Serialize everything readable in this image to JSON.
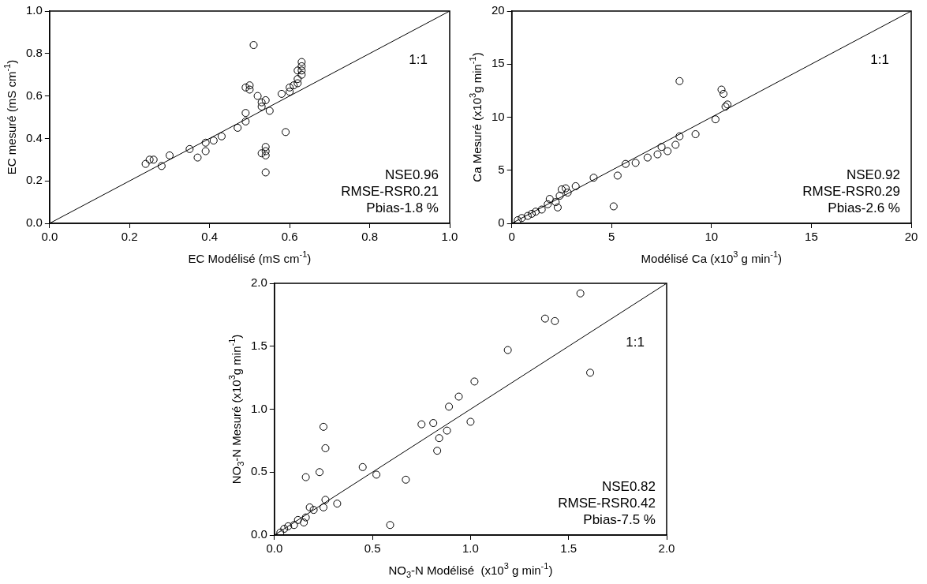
{
  "chart_data": [
    {
      "type": "scatter",
      "xlabel": "EC Modélisé (mS cm$^{-1}$)",
      "ylabel": "EC mesuré (mS cm$^{-1}$)",
      "marker": "circle",
      "xlim": [
        0,
        1
      ],
      "ylim": [
        0,
        1
      ],
      "xticks": [
        {
          "value": 0,
          "label": "0.0"
        },
        {
          "value": 0.2,
          "label": "0.2"
        },
        {
          "value": 0.4,
          "label": "0.4"
        },
        {
          "value": 0.6,
          "label": "0.6"
        },
        {
          "value": 0.8,
          "label": "0.8"
        },
        {
          "value": 1,
          "label": "1.0"
        }
      ],
      "yticks": [
        {
          "value": 0,
          "label": "0.0"
        },
        {
          "value": 0.2,
          "label": "0.2"
        },
        {
          "value": 0.4,
          "label": "0.4"
        },
        {
          "value": 0.6,
          "label": "0.6"
        },
        {
          "value": 0.8,
          "label": "0.8"
        },
        {
          "value": 1,
          "label": "1.0"
        }
      ],
      "series": [
        {
          "type": "scatter",
          "color": "#000000",
          "x": [
            0.24,
            0.25,
            0.26,
            0.28,
            0.3,
            0.35,
            0.37,
            0.39,
            0.39,
            0.41,
            0.43,
            0.47,
            0.49,
            0.49,
            0.49,
            0.5,
            0.5,
            0.51,
            0.52,
            0.53,
            0.53,
            0.53,
            0.54,
            0.54,
            0.54,
            0.54,
            0.54,
            0.55,
            0.58,
            0.59,
            0.6,
            0.6,
            0.61,
            0.62,
            0.62,
            0.63,
            0.63,
            0.63,
            0.63,
            0.62
          ],
          "values": [
            0.28,
            0.3,
            0.3,
            0.27,
            0.32,
            0.35,
            0.31,
            0.34,
            0.38,
            0.39,
            0.41,
            0.45,
            0.48,
            0.52,
            0.64,
            0.65,
            0.63,
            0.84,
            0.6,
            0.57,
            0.55,
            0.33,
            0.36,
            0.34,
            0.32,
            0.24,
            0.58,
            0.53,
            0.61,
            0.43,
            0.62,
            0.64,
            0.65,
            0.66,
            0.68,
            0.7,
            0.72,
            0.74,
            0.76,
            0.72
          ]
        },
        {
          "type": "line",
          "color": "#000000",
          "marker": "none",
          "x": [
            0,
            1
          ],
          "values": [
            0,
            1
          ]
        }
      ],
      "annotations": [
        "1:1",
        "NSE0.96",
        "RMSE-RSR0.21",
        "Pbias-1.8 %"
      ]
    },
    {
      "type": "scatter",
      "xlabel": "Modélisé Ca (x10$^{3}$ g min$^{-1}$)",
      "ylabel": "Ca Mesuré (x10$^{3}$g min$^{-1}$)",
      "marker": "circle",
      "xlim": [
        0,
        20
      ],
      "ylim": [
        0,
        20
      ],
      "xticks": [
        0,
        5,
        10,
        15,
        20
      ],
      "yticks": [
        0,
        5,
        10,
        15,
        20
      ],
      "series": [
        {
          "type": "scatter",
          "color": "#000000",
          "x": [
            0.3,
            0.5,
            0.8,
            1.0,
            1.2,
            1.5,
            1.8,
            1.9,
            2.2,
            2.3,
            2.4,
            2.5,
            2.7,
            2.8,
            3.2,
            4.1,
            5.1,
            5.3,
            5.7,
            6.2,
            6.8,
            7.3,
            7.5,
            7.8,
            8.2,
            8.4,
            8.4,
            9.2,
            10.2,
            10.5,
            10.6,
            10.8,
            10.7
          ],
          "values": [
            0.3,
            0.5,
            0.7,
            0.9,
            1.1,
            1.3,
            1.8,
            2.3,
            2.0,
            1.5,
            2.6,
            3.2,
            3.3,
            2.9,
            3.5,
            4.3,
            1.6,
            4.5,
            5.6,
            5.7,
            6.2,
            6.5,
            7.2,
            6.8,
            7.4,
            8.2,
            13.4,
            8.4,
            9.8,
            12.6,
            12.2,
            11.2,
            11.0
          ]
        },
        {
          "type": "line",
          "color": "#000000",
          "marker": "none",
          "x": [
            0,
            20
          ],
          "values": [
            0,
            20
          ]
        }
      ],
      "annotations": [
        "1:1",
        "NSE0.92",
        "RMSE-RSR0.29",
        "Pbias-2.6 %"
      ]
    },
    {
      "type": "scatter",
      "xlabel": "NO$_{3}$-N Modélisé  (x10$^{3}$ g min$^{-1}$)",
      "ylabel": "NO$_{3}$-N Mesuré (x10$^{3}$g min$^{-1}$)",
      "marker": "circle",
      "xlim": [
        0,
        2
      ],
      "ylim": [
        0,
        2
      ],
      "xticks": [
        {
          "value": 0,
          "label": "0.0"
        },
        {
          "value": 0.5,
          "label": "0.5"
        },
        {
          "value": 1,
          "label": "1.0"
        },
        {
          "value": 1.5,
          "label": "1.5"
        },
        {
          "value": 2,
          "label": "2.0"
        }
      ],
      "yticks": [
        {
          "value": 0,
          "label": "0.0"
        },
        {
          "value": 0.5,
          "label": "0.5"
        },
        {
          "value": 1,
          "label": "1.0"
        },
        {
          "value": 1.5,
          "label": "1.5"
        },
        {
          "value": 2,
          "label": "2.0"
        }
      ],
      "series": [
        {
          "type": "scatter",
          "color": "#000000",
          "x": [
            1.02,
            0.94,
            0.89,
            1.0,
            0.75,
            0.81,
            0.88,
            0.84,
            0.83,
            0.25,
            0.26,
            0.23,
            0.16,
            0.45,
            0.52,
            0.67,
            0.59,
            0.26,
            0.32,
            0.18,
            0.16,
            0.12,
            0.07,
            0.03,
            0.05,
            0.1,
            0.15,
            0.2,
            0.25,
            1.19,
            1.38,
            1.43,
            1.56,
            1.61
          ],
          "values": [
            1.22,
            1.1,
            1.02,
            0.9,
            0.88,
            0.89,
            0.83,
            0.77,
            0.67,
            0.86,
            0.69,
            0.5,
            0.46,
            0.54,
            0.48,
            0.44,
            0.08,
            0.28,
            0.25,
            0.22,
            0.14,
            0.12,
            0.07,
            0.02,
            0.05,
            0.08,
            0.1,
            0.2,
            0.22,
            1.47,
            1.72,
            1.7,
            1.92,
            1.29
          ]
        },
        {
          "type": "line",
          "color": "#000000",
          "marker": "none",
          "x": [
            0,
            2
          ],
          "values": [
            0,
            2
          ]
        }
      ],
      "annotations": [
        "1:1",
        "NSE0.82",
        "RMSE-RSR0.42",
        "Pbias-7.5 %"
      ]
    }
  ]
}
